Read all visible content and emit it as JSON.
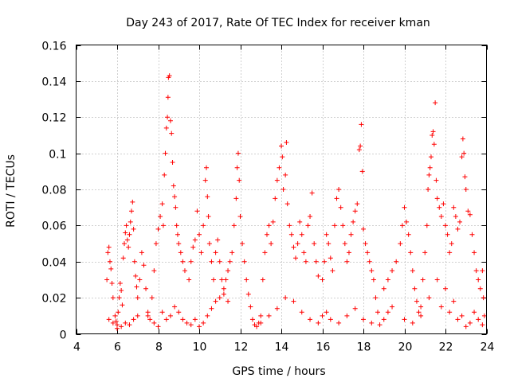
{
  "chart_data": {
    "type": "scatter",
    "title": "Day 243 of 2017, Rate Of TEC Index for receiver kman",
    "xlabel": "GPS time / hours",
    "ylabel": "ROTI / TECUs",
    "xlim": [
      4,
      24
    ],
    "ylim": [
      0,
      0.16
    ],
    "xticks": [
      "4",
      "6",
      "8",
      "10",
      "12",
      "14",
      "16",
      "18",
      "20",
      "22",
      "24"
    ],
    "yticks": [
      "0",
      "0.02",
      "0.04",
      "0.06",
      "0.08",
      "0.1",
      "0.12",
      "0.14",
      "0.16"
    ],
    "grid": true,
    "marker": "+",
    "series_color": "#ff0000",
    "series": [
      {
        "name": "ROTI",
        "points": [
          [
            5.5,
            0.03
          ],
          [
            5.55,
            0.045
          ],
          [
            5.6,
            0.048
          ],
          [
            5.65,
            0.04
          ],
          [
            5.7,
            0.036
          ],
          [
            5.75,
            0.028
          ],
          [
            5.8,
            0.02
          ],
          [
            5.9,
            0.01
          ],
          [
            5.95,
            0.007
          ],
          [
            6.0,
            0.005
          ],
          [
            6.05,
            0.012
          ],
          [
            6.1,
            0.02
          ],
          [
            6.15,
            0.028
          ],
          [
            6.2,
            0.024
          ],
          [
            6.25,
            0.016
          ],
          [
            6.3,
            0.042
          ],
          [
            6.35,
            0.05
          ],
          [
            6.4,
            0.056
          ],
          [
            6.45,
            0.06
          ],
          [
            6.5,
            0.052
          ],
          [
            6.55,
            0.048
          ],
          [
            6.6,
            0.055
          ],
          [
            6.65,
            0.062
          ],
          [
            6.7,
            0.068
          ],
          [
            6.75,
            0.073
          ],
          [
            6.8,
            0.058
          ],
          [
            6.85,
            0.04
          ],
          [
            6.9,
            0.032
          ],
          [
            6.95,
            0.026
          ],
          [
            7.0,
            0.02
          ],
          [
            5.6,
            0.008
          ],
          [
            5.8,
            0.006
          ],
          [
            6.0,
            0.003
          ],
          [
            6.2,
            0.004
          ],
          [
            6.4,
            0.006
          ],
          [
            6.6,
            0.005
          ],
          [
            6.8,
            0.008
          ],
          [
            7.0,
            0.01
          ],
          [
            7.1,
            0.03
          ],
          [
            7.2,
            0.045
          ],
          [
            7.3,
            0.038
          ],
          [
            7.4,
            0.025
          ],
          [
            7.5,
            0.012
          ],
          [
            7.6,
            0.008
          ],
          [
            7.7,
            0.02
          ],
          [
            7.8,
            0.035
          ],
          [
            7.9,
            0.05
          ],
          [
            8.0,
            0.058
          ],
          [
            8.1,
            0.065
          ],
          [
            8.2,
            0.072
          ],
          [
            8.25,
            0.06
          ],
          [
            8.3,
            0.088
          ],
          [
            8.35,
            0.1
          ],
          [
            8.4,
            0.114
          ],
          [
            8.45,
            0.12
          ],
          [
            8.48,
            0.131
          ],
          [
            8.5,
            0.142
          ],
          [
            8.55,
            0.143
          ],
          [
            8.6,
            0.118
          ],
          [
            8.65,
            0.111
          ],
          [
            8.7,
            0.095
          ],
          [
            8.75,
            0.082
          ],
          [
            8.8,
            0.076
          ],
          [
            8.85,
            0.07
          ],
          [
            8.9,
            0.06
          ],
          [
            8.95,
            0.055
          ],
          [
            9.0,
            0.05
          ],
          [
            9.1,
            0.045
          ],
          [
            9.2,
            0.04
          ],
          [
            9.3,
            0.035
          ],
          [
            7.5,
            0.01
          ],
          [
            7.8,
            0.006
          ],
          [
            8.0,
            0.004
          ],
          [
            8.2,
            0.012
          ],
          [
            8.4,
            0.008
          ],
          [
            8.6,
            0.01
          ],
          [
            8.8,
            0.015
          ],
          [
            9.0,
            0.012
          ],
          [
            9.2,
            0.008
          ],
          [
            9.4,
            0.006
          ],
          [
            9.5,
            0.03
          ],
          [
            9.6,
            0.04
          ],
          [
            9.7,
            0.048
          ],
          [
            9.8,
            0.052
          ],
          [
            9.9,
            0.068
          ],
          [
            10.0,
            0.055
          ],
          [
            10.1,
            0.045
          ],
          [
            10.2,
            0.06
          ],
          [
            10.3,
            0.085
          ],
          [
            10.35,
            0.092
          ],
          [
            10.4,
            0.076
          ],
          [
            10.45,
            0.065
          ],
          [
            10.5,
            0.05
          ],
          [
            10.6,
            0.04
          ],
          [
            10.7,
            0.03
          ],
          [
            10.8,
            0.045
          ],
          [
            10.9,
            0.052
          ],
          [
            11.0,
            0.04
          ],
          [
            11.1,
            0.03
          ],
          [
            11.2,
            0.025
          ],
          [
            9.6,
            0.005
          ],
          [
            9.8,
            0.008
          ],
          [
            10.0,
            0.004
          ],
          [
            10.2,
            0.006
          ],
          [
            10.4,
            0.01
          ],
          [
            10.6,
            0.014
          ],
          [
            10.8,
            0.018
          ],
          [
            11.0,
            0.02
          ],
          [
            11.2,
            0.022
          ],
          [
            11.4,
            0.018
          ],
          [
            11.3,
            0.03
          ],
          [
            11.4,
            0.035
          ],
          [
            11.5,
            0.04
          ],
          [
            11.6,
            0.045
          ],
          [
            11.7,
            0.06
          ],
          [
            11.8,
            0.075
          ],
          [
            11.85,
            0.092
          ],
          [
            11.9,
            0.1
          ],
          [
            11.95,
            0.085
          ],
          [
            12.0,
            0.065
          ],
          [
            12.1,
            0.05
          ],
          [
            12.2,
            0.04
          ],
          [
            12.3,
            0.03
          ],
          [
            12.4,
            0.022
          ],
          [
            12.5,
            0.015
          ],
          [
            12.6,
            0.008
          ],
          [
            12.7,
            0.005
          ],
          [
            12.8,
            0.004
          ],
          [
            12.9,
            0.006
          ],
          [
            13.0,
            0.01
          ],
          [
            13.1,
            0.03
          ],
          [
            13.2,
            0.045
          ],
          [
            13.3,
            0.055
          ],
          [
            13.4,
            0.06
          ],
          [
            13.5,
            0.05
          ],
          [
            13.6,
            0.062
          ],
          [
            13.7,
            0.075
          ],
          [
            13.8,
            0.085
          ],
          [
            13.9,
            0.092
          ],
          [
            14.0,
            0.104
          ],
          [
            14.05,
            0.098
          ],
          [
            14.1,
            0.08
          ],
          [
            14.2,
            0.088
          ],
          [
            14.25,
            0.106
          ],
          [
            14.3,
            0.072
          ],
          [
            14.4,
            0.06
          ],
          [
            14.5,
            0.055
          ],
          [
            14.6,
            0.048
          ],
          [
            14.7,
            0.042
          ],
          [
            14.8,
            0.05
          ],
          [
            14.9,
            0.062
          ],
          [
            15.0,
            0.055
          ],
          [
            15.1,
            0.045
          ],
          [
            15.2,
            0.04
          ],
          [
            15.3,
            0.06
          ],
          [
            15.4,
            0.065
          ],
          [
            15.5,
            0.078
          ],
          [
            15.6,
            0.05
          ],
          [
            15.7,
            0.04
          ],
          [
            15.8,
            0.032
          ],
          [
            13.0,
            0.006
          ],
          [
            13.4,
            0.01
          ],
          [
            13.8,
            0.014
          ],
          [
            14.2,
            0.02
          ],
          [
            14.6,
            0.018
          ],
          [
            15.0,
            0.012
          ],
          [
            15.4,
            0.008
          ],
          [
            15.8,
            0.006
          ],
          [
            16.0,
            0.01
          ],
          [
            16.2,
            0.012
          ],
          [
            16.0,
            0.03
          ],
          [
            16.1,
            0.04
          ],
          [
            16.2,
            0.055
          ],
          [
            16.3,
            0.05
          ],
          [
            16.4,
            0.042
          ],
          [
            16.5,
            0.035
          ],
          [
            16.6,
            0.06
          ],
          [
            16.7,
            0.075
          ],
          [
            16.8,
            0.08
          ],
          [
            16.9,
            0.07
          ],
          [
            17.0,
            0.06
          ],
          [
            17.1,
            0.05
          ],
          [
            17.2,
            0.04
          ],
          [
            17.3,
            0.045
          ],
          [
            17.4,
            0.055
          ],
          [
            17.5,
            0.062
          ],
          [
            17.6,
            0.068
          ],
          [
            17.7,
            0.072
          ],
          [
            17.8,
            0.102
          ],
          [
            17.85,
            0.104
          ],
          [
            17.9,
            0.116
          ],
          [
            17.95,
            0.09
          ],
          [
            18.0,
            0.058
          ],
          [
            18.1,
            0.05
          ],
          [
            18.2,
            0.045
          ],
          [
            18.3,
            0.04
          ],
          [
            18.4,
            0.035
          ],
          [
            18.5,
            0.03
          ],
          [
            18.6,
            0.02
          ],
          [
            18.7,
            0.012
          ],
          [
            16.4,
            0.008
          ],
          [
            16.8,
            0.006
          ],
          [
            17.2,
            0.01
          ],
          [
            17.6,
            0.014
          ],
          [
            18.0,
            0.008
          ],
          [
            18.4,
            0.006
          ],
          [
            18.8,
            0.005
          ],
          [
            19.0,
            0.008
          ],
          [
            19.2,
            0.012
          ],
          [
            19.4,
            0.015
          ],
          [
            19.0,
            0.025
          ],
          [
            19.2,
            0.03
          ],
          [
            19.4,
            0.035
          ],
          [
            19.6,
            0.04
          ],
          [
            19.8,
            0.05
          ],
          [
            19.9,
            0.06
          ],
          [
            20.0,
            0.07
          ],
          [
            20.1,
            0.062
          ],
          [
            20.2,
            0.055
          ],
          [
            20.3,
            0.045
          ],
          [
            20.4,
            0.035
          ],
          [
            20.5,
            0.025
          ],
          [
            20.6,
            0.018
          ],
          [
            20.7,
            0.012
          ],
          [
            20.8,
            0.015
          ],
          [
            20.9,
            0.03
          ],
          [
            21.0,
            0.045
          ],
          [
            21.1,
            0.06
          ],
          [
            21.15,
            0.08
          ],
          [
            21.2,
            0.088
          ],
          [
            21.25,
            0.092
          ],
          [
            21.3,
            0.098
          ],
          [
            21.35,
            0.11
          ],
          [
            21.4,
            0.112
          ],
          [
            21.45,
            0.105
          ],
          [
            21.5,
            0.128
          ],
          [
            21.55,
            0.085
          ],
          [
            21.6,
            0.075
          ],
          [
            21.7,
            0.07
          ],
          [
            21.8,
            0.065
          ],
          [
            21.9,
            0.072
          ],
          [
            22.0,
            0.06
          ],
          [
            22.1,
            0.055
          ],
          [
            22.2,
            0.045
          ],
          [
            22.3,
            0.05
          ],
          [
            22.4,
            0.07
          ],
          [
            22.5,
            0.065
          ],
          [
            22.6,
            0.058
          ],
          [
            22.7,
            0.062
          ],
          [
            22.8,
            0.098
          ],
          [
            22.85,
            0.108
          ],
          [
            22.9,
            0.1
          ],
          [
            22.95,
            0.087
          ],
          [
            23.0,
            0.08
          ],
          [
            23.1,
            0.068
          ],
          [
            23.2,
            0.066
          ],
          [
            23.3,
            0.055
          ],
          [
            23.4,
            0.045
          ],
          [
            23.5,
            0.035
          ],
          [
            23.6,
            0.03
          ],
          [
            23.7,
            0.025
          ],
          [
            23.8,
            0.035
          ],
          [
            23.85,
            0.02
          ],
          [
            23.9,
            0.01
          ],
          [
            20.0,
            0.008
          ],
          [
            20.4,
            0.006
          ],
          [
            20.8,
            0.01
          ],
          [
            21.2,
            0.02
          ],
          [
            21.6,
            0.03
          ],
          [
            22.0,
            0.025
          ],
          [
            22.4,
            0.018
          ],
          [
            22.8,
            0.01
          ],
          [
            23.0,
            0.004
          ],
          [
            23.2,
            0.006
          ],
          [
            23.4,
            0.012
          ],
          [
            23.6,
            0.008
          ],
          [
            23.8,
            0.005
          ],
          [
            21.8,
            0.015
          ],
          [
            22.2,
            0.012
          ],
          [
            22.6,
            0.008
          ]
        ]
      }
    ]
  }
}
